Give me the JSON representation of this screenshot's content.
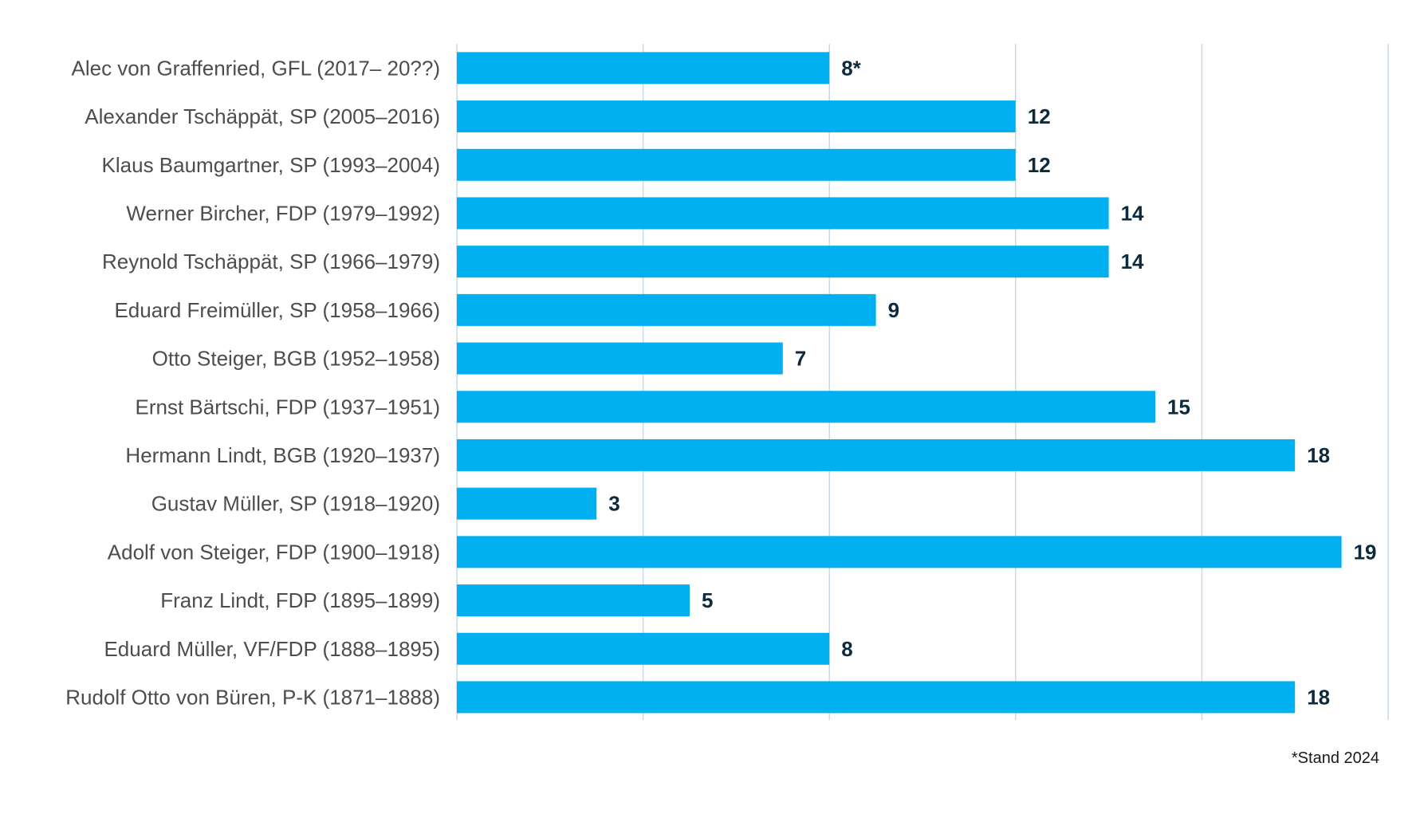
{
  "chart_data": {
    "type": "bar",
    "orientation": "horizontal",
    "categories": [
      "Alec von Graffenried, GFL (2017– 20??)",
      "Alexander Tschäppät, SP (2005–2016)",
      "Klaus Baumgartner, SP (1993–2004)",
      "Werner Bircher, FDP (1979–1992)",
      "Reynold Tschäppät, SP (1966–1979)",
      "Eduard Freimüller, SP (1958–1966)",
      "Otto Steiger, BGB (1952–1958)",
      "Ernst Bärtschi, FDP (1937–1951)",
      "Hermann Lindt, BGB (1920–1937)",
      "Gustav Müller, SP (1918–1920)",
      "Adolf von Steiger, FDP (1900–1918)",
      "Franz Lindt, FDP (1895–1899)",
      "Eduard Müller, VF/FDP (1888–1895)",
      "Rudolf Otto von Büren, P-K (1871–1888)"
    ],
    "values": [
      8,
      12,
      12,
      14,
      14,
      9,
      7,
      15,
      18,
      3,
      19,
      5,
      8,
      18
    ],
    "value_labels": [
      "8*",
      "12",
      "12",
      "14",
      "14",
      "9",
      "7",
      "15",
      "18",
      "3",
      "19",
      "5",
      "8",
      "18"
    ],
    "xlim": [
      0,
      20
    ],
    "grid_step": 4,
    "grid": true,
    "bar_color": "#00b0f0",
    "grid_color": "#c9d9e6",
    "title": "",
    "xlabel": "",
    "ylabel": ""
  },
  "footnote": "*Stand 2024"
}
